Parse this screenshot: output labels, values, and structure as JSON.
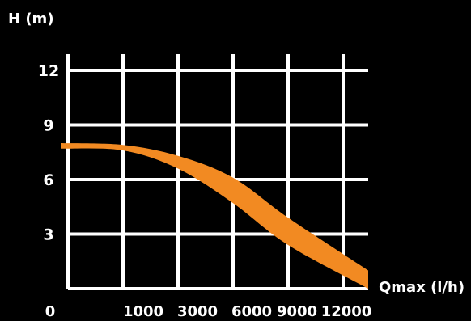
{
  "chart_data": {
    "type": "area",
    "ylabel": "H (m)",
    "xlabel": "Qmax (l/h)",
    "origin_label": "0",
    "x_tick_labels": [
      "1000",
      "3000",
      "6000",
      "9000",
      "12000"
    ],
    "y_ticks": [
      3,
      6,
      9,
      12
    ],
    "y_tick_labels": [
      "3",
      "6",
      "9",
      "12"
    ],
    "ylim": [
      0,
      12
    ],
    "grid": true,
    "band_color": "#f28a22",
    "grid_color": "#ffffff",
    "background": "#000000",
    "series": [
      {
        "x": [
          "0",
          "1000",
          "3000",
          "6000",
          "9000",
          "12000"
        ],
        "upper": [
          8.0,
          7.9,
          7.3,
          6.1,
          3.9,
          1.0
        ],
        "lower": [
          7.7,
          7.6,
          6.6,
          4.7,
          2.4,
          0.0
        ]
      }
    ]
  }
}
